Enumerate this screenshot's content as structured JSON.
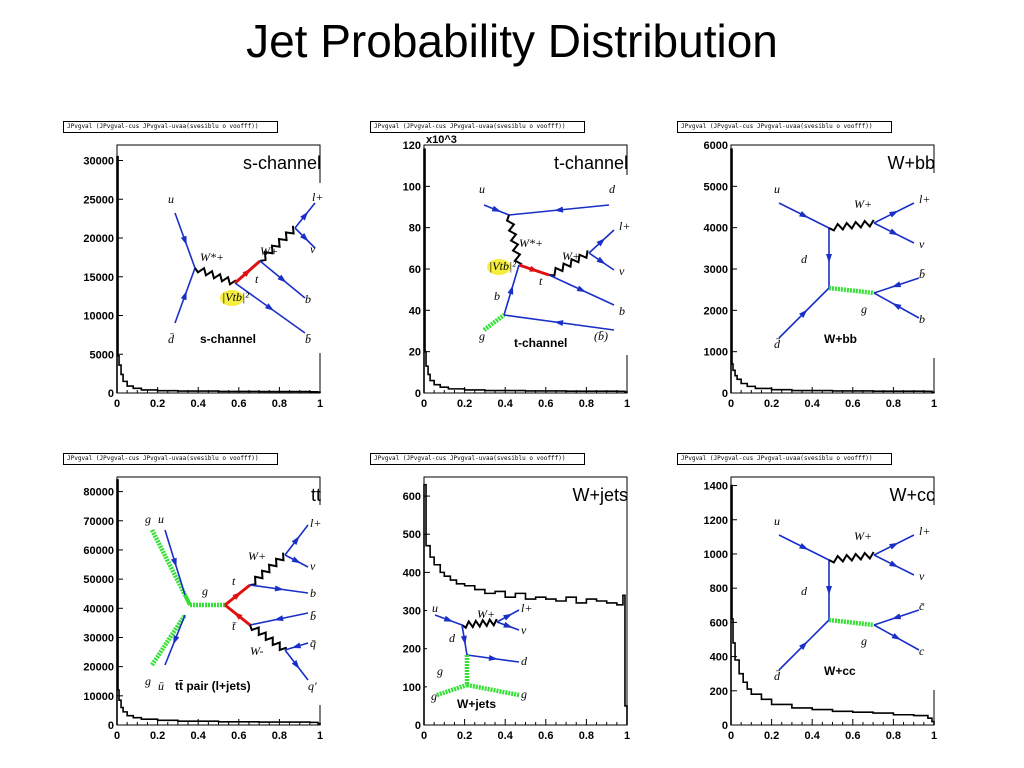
{
  "title": "Jet Probability Distribution",
  "stat_box_text": "JPvgval (JPvgval-cus JPvgval-uvaa(svesiblu o voofff))",
  "chart_data": [
    {
      "type": "area",
      "panel_label": "s-channel",
      "xlim": [
        0,
        1
      ],
      "ylim": [
        0,
        32000
      ],
      "xticks": [
        "0",
        "0.2",
        "0.4",
        "0.6",
        "0.8",
        "1"
      ],
      "yticks": [
        {
          "v": 5000,
          "t": "5000"
        },
        {
          "v": 10000,
          "t": "10000"
        },
        {
          "v": 15000,
          "t": "15000"
        },
        {
          "v": 20000,
          "t": "20000"
        },
        {
          "v": 25000,
          "t": "25000"
        },
        {
          "v": 30000,
          "t": "30000"
        }
      ],
      "x": [
        0.0,
        0.005,
        0.01,
        0.02,
        0.03,
        0.05,
        0.08,
        0.12,
        0.2,
        0.3,
        0.5,
        0.7,
        0.95,
        0.99,
        1.0
      ],
      "y": [
        30500,
        4800,
        3600,
        2400,
        1500,
        900,
        600,
        400,
        300,
        250,
        200,
        180,
        150,
        100,
        0
      ]
    },
    {
      "type": "area",
      "panel_label": "t-channel",
      "xlim": [
        0,
        1
      ],
      "ylim": [
        0,
        120
      ],
      "y_multiplier": "x10^3",
      "xticks": [
        "0",
        "0.2",
        "0.4",
        "0.6",
        "0.8",
        "1"
      ],
      "yticks": [
        {
          "v": 20,
          "t": "20"
        },
        {
          "v": 40,
          "t": "40"
        },
        {
          "v": 60,
          "t": "60"
        },
        {
          "v": 80,
          "t": "80"
        },
        {
          "v": 100,
          "t": "100"
        },
        {
          "v": 120,
          "t": "120"
        }
      ],
      "x": [
        0.0,
        0.005,
        0.01,
        0.02,
        0.03,
        0.05,
        0.08,
        0.12,
        0.2,
        0.3,
        0.5,
        0.7,
        0.95,
        0.99,
        1.0
      ],
      "y": [
        118,
        20,
        13,
        9,
        6,
        4,
        2.8,
        2,
        1.5,
        1.2,
        1,
        0.9,
        0.8,
        0.5,
        0
      ]
    },
    {
      "type": "area",
      "panel_label": "W+bb",
      "xlim": [
        0,
        1
      ],
      "ylim": [
        0,
        6000
      ],
      "xticks": [
        "0",
        "0.2",
        "0.4",
        "0.6",
        "0.8",
        "1"
      ],
      "yticks": [
        {
          "v": 1000,
          "t": "1000"
        },
        {
          "v": 2000,
          "t": "2000"
        },
        {
          "v": 3000,
          "t": "3000"
        },
        {
          "v": 4000,
          "t": "4000"
        },
        {
          "v": 5000,
          "t": "5000"
        },
        {
          "v": 6000,
          "t": "6000"
        }
      ],
      "x": [
        0.0,
        0.005,
        0.01,
        0.02,
        0.03,
        0.05,
        0.08,
        0.12,
        0.2,
        0.3,
        0.5,
        0.7,
        0.95,
        0.99,
        1.0
      ],
      "y": [
        5900,
        700,
        550,
        420,
        330,
        230,
        160,
        110,
        80,
        60,
        50,
        45,
        40,
        20,
        0
      ]
    },
    {
      "type": "area",
      "panel_label": "tt",
      "xlim": [
        0,
        1
      ],
      "ylim": [
        0,
        85000
      ],
      "xticks": [
        "0",
        "0.2",
        "0.4",
        "0.6",
        "0.8",
        "1"
      ],
      "yticks": [
        {
          "v": 10000,
          "t": "10000"
        },
        {
          "v": 20000,
          "t": "20000"
        },
        {
          "v": 30000,
          "t": "30000"
        },
        {
          "v": 40000,
          "t": "40000"
        },
        {
          "v": 50000,
          "t": "50000"
        },
        {
          "v": 60000,
          "t": "60000"
        },
        {
          "v": 70000,
          "t": "70000"
        },
        {
          "v": 80000,
          "t": "80000"
        }
      ],
      "x": [
        0.0,
        0.005,
        0.01,
        0.02,
        0.03,
        0.05,
        0.08,
        0.12,
        0.2,
        0.3,
        0.5,
        0.7,
        0.95,
        0.99,
        1.0
      ],
      "y": [
        84000,
        12000,
        8500,
        6000,
        4500,
        3200,
        2500,
        2000,
        1600,
        1300,
        1100,
        1000,
        900,
        500,
        0
      ]
    },
    {
      "type": "area",
      "panel_label": "W+jets",
      "xlim": [
        0,
        1
      ],
      "ylim": [
        0,
        650
      ],
      "xticks": [
        "0",
        "0.2",
        "0.4",
        "0.6",
        "0.8",
        "1"
      ],
      "yticks": [
        {
          "v": 100,
          "t": "100"
        },
        {
          "v": 200,
          "t": "200"
        },
        {
          "v": 300,
          "t": "300"
        },
        {
          "v": 400,
          "t": "400"
        },
        {
          "v": 500,
          "t": "500"
        },
        {
          "v": 600,
          "t": "600"
        }
      ],
      "x": [
        0.0,
        0.01,
        0.03,
        0.05,
        0.08,
        0.1,
        0.13,
        0.16,
        0.2,
        0.25,
        0.3,
        0.35,
        0.4,
        0.45,
        0.5,
        0.55,
        0.6,
        0.65,
        0.7,
        0.75,
        0.8,
        0.85,
        0.9,
        0.95,
        0.98,
        0.99,
        1.0
      ],
      "y": [
        630,
        470,
        440,
        420,
        400,
        390,
        380,
        370,
        365,
        355,
        345,
        350,
        335,
        345,
        330,
        335,
        330,
        325,
        335,
        320,
        330,
        325,
        320,
        315,
        340,
        50,
        0
      ]
    },
    {
      "type": "area",
      "panel_label": "W+cc",
      "xlim": [
        0,
        1
      ],
      "ylim": [
        0,
        1450
      ],
      "xticks": [
        "0",
        "0.2",
        "0.4",
        "0.6",
        "0.8",
        "1"
      ],
      "yticks": [
        {
          "v": 200,
          "t": "200"
        },
        {
          "v": 400,
          "t": "400"
        },
        {
          "v": 600,
          "t": "600"
        },
        {
          "v": 800,
          "t": "800"
        },
        {
          "v": 1000,
          "t": "1000"
        },
        {
          "v": 1200,
          "t": "1200"
        },
        {
          "v": 1400,
          "t": "1400"
        }
      ],
      "x": [
        0.0,
        0.005,
        0.01,
        0.02,
        0.04,
        0.06,
        0.08,
        0.1,
        0.15,
        0.2,
        0.3,
        0.4,
        0.5,
        0.6,
        0.7,
        0.8,
        0.9,
        0.97,
        0.99,
        1.0
      ],
      "y": [
        1400,
        620,
        480,
        380,
        300,
        250,
        210,
        180,
        150,
        120,
        100,
        90,
        80,
        75,
        70,
        60,
        55,
        40,
        20,
        0
      ]
    }
  ],
  "diagrams": [
    {
      "caption": "s-channel",
      "labels": {
        "u": "u",
        "dbar": "d̄",
        "w": "W*+",
        "wp": "W+",
        "l": "l+",
        "nu": "ν",
        "t": "t",
        "b": "b",
        "bbar": "b̄",
        "vtb": "|Vtb|²"
      }
    },
    {
      "caption": "t-channel",
      "labels": {
        "u": "u",
        "d": "d",
        "w": "W*+",
        "wp": "W+",
        "l": "l+",
        "nu": "ν",
        "t": "t",
        "b": "b",
        "b2": "b",
        "g": "g",
        "bparen": "(b̄)",
        "vtb": "|Vtb|²"
      }
    },
    {
      "caption": "W+bb",
      "labels": {
        "u": "u",
        "dbar": "d̄",
        "d": "d",
        "w": "W+",
        "l": "l+",
        "nu": "ν",
        "b1": "b̄",
        "b2": "b",
        "g": "g"
      }
    },
    {
      "caption": "tt̄ pair (l+jets)",
      "labels": {
        "g1": "g",
        "u": "u",
        "g2": "g",
        "ubar": "ū",
        "g": "g",
        "t": "t",
        "tbar": "t̄",
        "wp": "W+",
        "wm": "W-",
        "l": "l+",
        "nu": "ν",
        "b": "b",
        "bbar": "b̄",
        "q": "q̄",
        "qp": "q'"
      }
    },
    {
      "caption": "W+jets",
      "labels": {
        "u": "u",
        "w": "W+",
        "l": "l+",
        "nu": "ν",
        "d": "d",
        "d2": "d",
        "g": "g",
        "g2": "g",
        "g3": "g"
      }
    },
    {
      "caption": "W+cc",
      "labels": {
        "u": "u",
        "dbar": "d̄",
        "d": "d",
        "w": "W+",
        "l": "l+",
        "nu": "ν",
        "c1": "c̄",
        "c2": "c",
        "g": "g"
      }
    }
  ]
}
